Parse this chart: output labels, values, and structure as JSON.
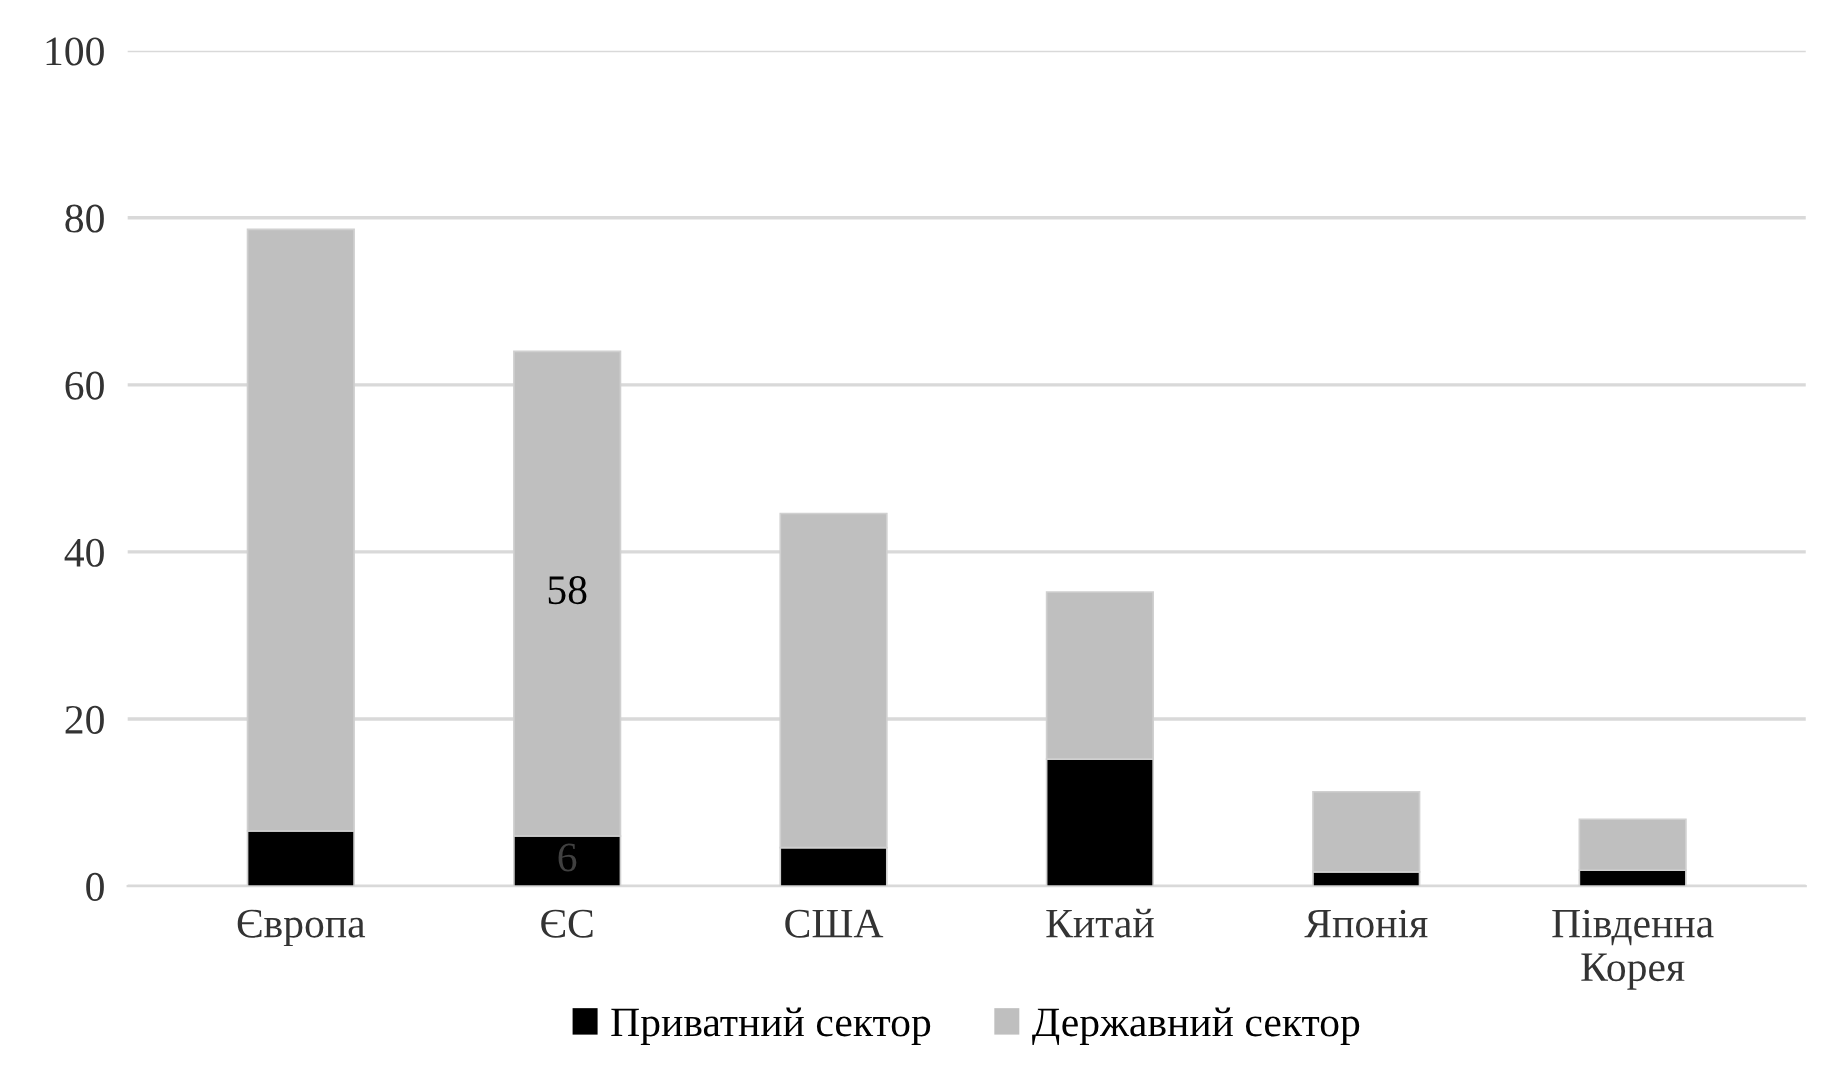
{
  "chart_data": {
    "type": "bar",
    "stacked": true,
    "categories": [
      "Європа",
      "ЄС",
      "США",
      "Китай",
      "Японія",
      "Південна\nКорея"
    ],
    "series": [
      {
        "name": "Приватний сектор",
        "color": "#000000",
        "values": [
          6.6,
          6,
          4.6,
          15.2,
          1.7,
          1.9
        ],
        "value_labels": [
          null,
          "6",
          null,
          null,
          null,
          null
        ]
      },
      {
        "name": "Державний сектор",
        "color": "#bfbfbf",
        "values": [
          72,
          58,
          40,
          20,
          9.6,
          6.1
        ],
        "value_labels": [
          null,
          "58",
          null,
          null,
          null,
          null
        ]
      }
    ],
    "ylim": [
      0,
      100
    ],
    "yticks": [
      0,
      20,
      40,
      60,
      80,
      100
    ],
    "grid": "y",
    "legend": "bottom"
  }
}
